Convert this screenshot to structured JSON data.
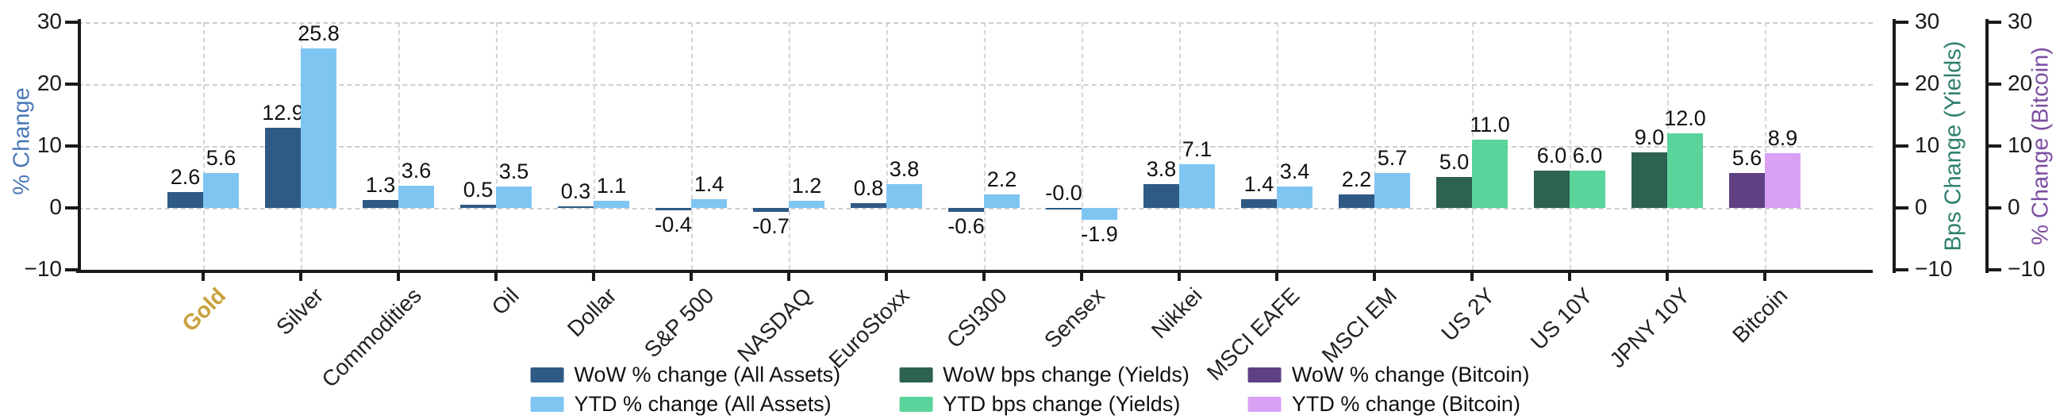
{
  "figure": {
    "left_axis": {
      "title": "% Change",
      "title_color": "#4A79B8",
      "ticks": [
        30,
        20,
        10,
        0,
        -10
      ]
    },
    "right_axis_yields": {
      "title": "Bps Change (Yields)",
      "title_color": "#2E806E",
      "ticks": [
        30,
        20,
        10,
        0,
        -10
      ]
    },
    "right_axis_bitcoin": {
      "title": "% Change (Bitcoin)",
      "title_color": "#7C4FA2",
      "ticks": [
        30,
        20,
        10,
        0,
        -10
      ]
    },
    "highlighted_category": {
      "label": "Gold",
      "color": "#C8A13E"
    }
  },
  "chart_data": {
    "type": "bar",
    "title": "",
    "ylim": [
      -10,
      30
    ],
    "grid": true,
    "legend_position": "bottom",
    "categories": [
      "Gold",
      "Silver",
      "Commodities",
      "Oil",
      "Dollar",
      "S&P 500",
      "NASDAQ",
      "EuroStoxx",
      "CSI300",
      "Sensex",
      "Nikkei",
      "MSCI EAFE",
      "MSCI EM",
      "US 2Y",
      "US 10Y",
      "JPNY 10Y",
      "Bitcoin"
    ],
    "category_groups": [
      "assets",
      "assets",
      "assets",
      "assets",
      "assets",
      "assets",
      "assets",
      "assets",
      "assets",
      "assets",
      "assets",
      "assets",
      "assets",
      "yields",
      "yields",
      "yields",
      "bitcoin"
    ],
    "series": [
      {
        "key": "wow",
        "name": "WoW change",
        "values": [
          2.6,
          12.9,
          1.3,
          0.5,
          0.3,
          -0.4,
          -0.7,
          0.8,
          -0.6,
          -0.0,
          3.8,
          1.4,
          2.2,
          5.0,
          6.0,
          9.0,
          5.6
        ],
        "labels": [
          "2.6",
          "12.9",
          "1.3",
          "0.5",
          "0.3",
          "-0.4",
          "-0.7",
          "0.8",
          "-0.6",
          "-0.0",
          "3.8",
          "1.4",
          "2.2",
          "5.0",
          "6.0",
          "9.0",
          "5.6"
        ]
      },
      {
        "key": "ytd",
        "name": "YTD change",
        "values": [
          5.6,
          25.8,
          3.6,
          3.5,
          1.1,
          1.4,
          1.2,
          3.8,
          2.2,
          -1.9,
          7.1,
          3.4,
          5.7,
          11.0,
          6.0,
          12.0,
          8.9
        ],
        "labels": [
          "5.6",
          "25.8",
          "3.6",
          "3.5",
          "1.1",
          "1.4",
          "1.2",
          "3.8",
          "2.2",
          "-1.9",
          "7.1",
          "3.4",
          "5.7",
          "11.0",
          "6.0",
          "12.0",
          "8.9"
        ]
      }
    ],
    "group_colors": {
      "assets": {
        "wow": "#2F5A85",
        "ytd": "#7FC5F2"
      },
      "yields": {
        "wow": "#2D6152",
        "ytd": "#5AD49A"
      },
      "bitcoin": {
        "wow": "#5F4183",
        "ytd": "#D8A1F4"
      }
    },
    "legend": [
      {
        "label": "WoW % change (All Assets)",
        "group": "assets",
        "key": "wow"
      },
      {
        "label": "YTD % change (All Assets)",
        "group": "assets",
        "key": "ytd"
      },
      {
        "label": "WoW bps change (Yields)",
        "group": "yields",
        "key": "wow"
      },
      {
        "label": "YTD bps change (Yields)",
        "group": "yields",
        "key": "ytd"
      },
      {
        "label": "WoW % change (Bitcoin)",
        "group": "bitcoin",
        "key": "wow"
      },
      {
        "label": "YTD % change (Bitcoin)",
        "group": "bitcoin",
        "key": "ytd"
      }
    ]
  }
}
